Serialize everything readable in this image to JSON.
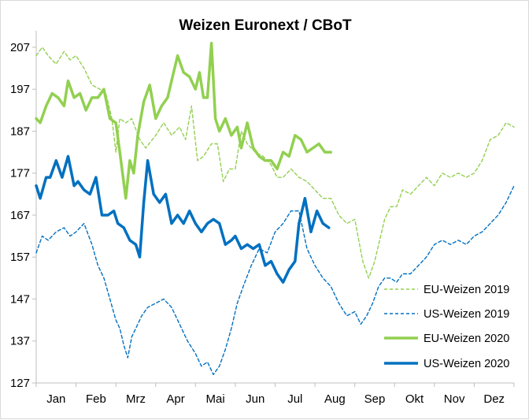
{
  "chart_data": {
    "type": "line",
    "title": "Weizen Euronext / CBoT",
    "xlabel": "",
    "ylabel": "",
    "x_ticks": [
      "Jan",
      "Feb",
      "Mrz",
      "Apr",
      "Mai",
      "Jun",
      "Jul",
      "Aug",
      "Sep",
      "Okt",
      "Nov",
      "Dez"
    ],
    "xlim": [
      0,
      12
    ],
    "y_ticks": [
      127,
      137,
      147,
      157,
      167,
      177,
      187,
      197,
      207
    ],
    "ylim": [
      127,
      210
    ],
    "grid": false,
    "legend_position": "bottom-right",
    "series": [
      {
        "name": "EU-Weizen 2019",
        "color": "#92d050",
        "style": "dashed",
        "x": [
          0.0,
          0.15,
          0.3,
          0.5,
          0.7,
          0.85,
          1.0,
          1.2,
          1.4,
          1.6,
          1.75,
          1.9,
          2.0,
          2.1,
          2.25,
          2.4,
          2.6,
          2.75,
          3.0,
          3.2,
          3.4,
          3.6,
          3.75,
          3.9,
          4.05,
          4.2,
          4.4,
          4.55,
          4.7,
          4.85,
          5.0,
          5.15,
          5.3,
          5.5,
          5.7,
          5.9,
          6.05,
          6.2,
          6.4,
          6.6,
          6.8,
          7.0,
          7.2,
          7.4,
          7.6,
          7.8,
          8.0,
          8.2,
          8.35,
          8.5,
          8.6,
          8.75,
          8.9,
          9.05,
          9.2,
          9.4,
          9.6,
          9.8,
          10.0,
          10.2,
          10.4,
          10.6,
          10.8,
          11.0,
          11.2,
          11.4,
          11.6,
          11.8,
          12.0
        ],
        "values": [
          205,
          207,
          205,
          203,
          206,
          204,
          205,
          202,
          198,
          197,
          196,
          190,
          182,
          190,
          189,
          190,
          185,
          183,
          186,
          189,
          186,
          188,
          185,
          193,
          180,
          181,
          184,
          184,
          175,
          178,
          178,
          187,
          184,
          182,
          181,
          179,
          176,
          176,
          178,
          176,
          175,
          173,
          171,
          171,
          167,
          165,
          166,
          156,
          152,
          156,
          160,
          166,
          169,
          169,
          173,
          172,
          174,
          176,
          174,
          177,
          176,
          177,
          176,
          177,
          180,
          185,
          186,
          189,
          188
        ]
      },
      {
        "name": "US-Weizen 2019",
        "color": "#0070c0",
        "style": "dashed",
        "x": [
          0.0,
          0.15,
          0.3,
          0.5,
          0.7,
          0.85,
          1.0,
          1.2,
          1.4,
          1.55,
          1.7,
          1.85,
          2.0,
          2.1,
          2.2,
          2.3,
          2.4,
          2.5,
          2.65,
          2.8,
          3.0,
          3.2,
          3.4,
          3.6,
          3.8,
          4.0,
          4.15,
          4.3,
          4.45,
          4.6,
          4.75,
          4.9,
          5.05,
          5.2,
          5.4,
          5.6,
          5.8,
          6.0,
          6.2,
          6.4,
          6.6,
          6.8,
          7.0,
          7.2,
          7.4,
          7.6,
          7.8,
          8.0,
          8.15,
          8.3,
          8.45,
          8.6,
          8.75,
          8.9,
          9.05,
          9.2,
          9.4,
          9.6,
          9.8,
          10.0,
          10.2,
          10.4,
          10.6,
          10.8,
          11.0,
          11.2,
          11.4,
          11.6,
          11.8,
          12.0
        ],
        "values": [
          158,
          162,
          161,
          163,
          164,
          162,
          163,
          165,
          160,
          155,
          152,
          147,
          142,
          140,
          136,
          133,
          138,
          140,
          143,
          145,
          146,
          147,
          145,
          141,
          137,
          134,
          131,
          132,
          129,
          131,
          135,
          140,
          146,
          150,
          155,
          159,
          158,
          163,
          165,
          168,
          168,
          159,
          155,
          152,
          150,
          146,
          143,
          144,
          141,
          143,
          146,
          150,
          152,
          152,
          151,
          153,
          153,
          155,
          157,
          160,
          161,
          160,
          161,
          160,
          162,
          163,
          165,
          167,
          170,
          174
        ]
      },
      {
        "name": "EU-Weizen 2020",
        "color": "#92d050",
        "style": "solid",
        "x": [
          0.0,
          0.1,
          0.25,
          0.4,
          0.55,
          0.7,
          0.8,
          0.95,
          1.1,
          1.25,
          1.4,
          1.55,
          1.7,
          1.85,
          2.0,
          2.1,
          2.25,
          2.35,
          2.45,
          2.55,
          2.7,
          2.85,
          3.0,
          3.15,
          3.3,
          3.45,
          3.55,
          3.7,
          3.85,
          4.0,
          4.1,
          4.2,
          4.3,
          4.4,
          4.5,
          4.6,
          4.75,
          4.9,
          5.05,
          5.15,
          5.3,
          5.45,
          5.6,
          5.75,
          5.9,
          6.05,
          6.2,
          6.35,
          6.5,
          6.65,
          6.8,
          6.95,
          7.1,
          7.25,
          7.4
        ],
        "values": [
          190,
          189,
          193,
          196,
          195,
          193,
          199,
          195,
          196,
          192,
          195,
          195,
          197,
          190,
          189,
          182,
          171,
          180,
          177,
          186,
          194,
          198,
          190,
          193,
          195,
          201,
          205,
          201,
          200,
          197,
          201,
          195,
          195,
          208,
          190,
          187,
          190,
          186,
          188,
          183,
          189,
          183,
          181,
          180,
          180,
          178,
          182,
          181,
          186,
          185,
          182,
          183,
          184,
          182,
          182
        ]
      },
      {
        "name": "US-Weizen 2020",
        "color": "#0070c0",
        "style": "solid",
        "x": [
          0.0,
          0.1,
          0.25,
          0.35,
          0.5,
          0.65,
          0.8,
          0.95,
          1.05,
          1.2,
          1.35,
          1.5,
          1.65,
          1.8,
          1.95,
          2.05,
          2.2,
          2.35,
          2.5,
          2.6,
          2.7,
          2.8,
          2.95,
          3.1,
          3.25,
          3.4,
          3.55,
          3.7,
          3.85,
          4.0,
          4.15,
          4.3,
          4.45,
          4.6,
          4.75,
          4.9,
          5.0,
          5.15,
          5.3,
          5.45,
          5.6,
          5.75,
          5.9,
          6.05,
          6.2,
          6.35,
          6.5,
          6.6,
          6.75,
          6.9,
          7.05,
          7.2,
          7.35
        ],
        "values": [
          174,
          171,
          176,
          176,
          180,
          176,
          181,
          174,
          175,
          173,
          172,
          176,
          167,
          167,
          168,
          165,
          164,
          161,
          160,
          157,
          170,
          180,
          172,
          170,
          172,
          165,
          167,
          165,
          168,
          165,
          163,
          165,
          166,
          165,
          160,
          161,
          162,
          159,
          160,
          159,
          160,
          155,
          156,
          153,
          151,
          154,
          156,
          165,
          171,
          163,
          168,
          165,
          164
        ]
      }
    ]
  }
}
